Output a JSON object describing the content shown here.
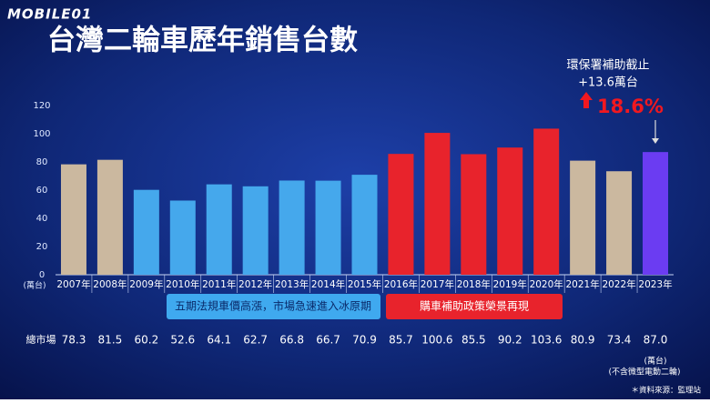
{
  "chart_data": {
    "type": "bar",
    "logo": "MOBILE01",
    "title": "台灣二輪車歷年銷售台數",
    "categories": [
      "2007年",
      "2008年",
      "2009年",
      "2010年",
      "2011年",
      "2012年",
      "2013年",
      "2014年",
      "2015年",
      "2016年",
      "2017年",
      "2018年",
      "2019年",
      "2020年",
      "2021年",
      "2022年",
      "2023年"
    ],
    "values": [
      78.3,
      81.5,
      60.2,
      52.6,
      64.1,
      62.7,
      66.8,
      66.7,
      70.9,
      85.7,
      100.6,
      85.5,
      90.2,
      103.6,
      80.9,
      73.4,
      87.0
    ],
    "value_labels": [
      "78.3",
      "81.5",
      "60.2",
      "52.6",
      "64.1",
      "62.7",
      "66.8",
      "66.7",
      "70.9",
      "85.7",
      "100.6",
      "85.5",
      "90.2",
      "103.6",
      "80.9",
      "73.4",
      "87.0"
    ],
    "colors": [
      "#cbb89f",
      "#cbb89f",
      "#45a8ec",
      "#45a8ec",
      "#45a8ec",
      "#45a8ec",
      "#45a8ec",
      "#45a8ec",
      "#45a8ec",
      "#e8232c",
      "#e8232c",
      "#e8232c",
      "#e8232c",
      "#e8232c",
      "#cbb89f",
      "#cbb89f",
      "#6b3cf2"
    ],
    "ylim": [
      0,
      120
    ],
    "yticks": [
      0,
      20,
      40,
      60,
      80,
      100,
      120
    ],
    "y_unit": "(萬台)",
    "row_label": "總市場",
    "periods": [
      {
        "label": "五期法規車價高漲，市場急速進入冰原期",
        "color": "#3fa9ef"
      },
      {
        "label": "購車補助政策榮景再現",
        "color": "#e8232c"
      }
    ],
    "callout": [
      "環保署補助截止",
      "+13.6萬台"
    ],
    "growth": "18.6%",
    "unit_note": "(萬台)",
    "scope_note": "(不含微型電動二輪)",
    "source": "＊資料來源：監理站"
  }
}
